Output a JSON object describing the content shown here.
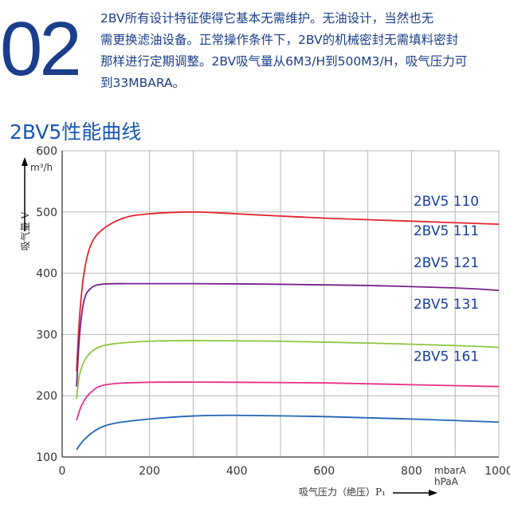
{
  "header": {
    "number": "02",
    "intro_lines": [
      "2BV所有设计特征使得它基本无需维护。无油设计，当然也无",
      "需更换滤油设备。正常操作条件下，2BV的机械密封无需填料密封",
      "那样进行定期调整。2BV吸气量从6M3/H到500M3/H，吸气压力可",
      "到33MBARA。"
    ]
  },
  "chart_data": {
    "type": "line",
    "title": "2BV5性能曲线",
    "xlabel": "吸气压力（绝压）P₁",
    "x_unit": [
      "mbarA",
      "hPaA"
    ],
    "ylabel": "吸气量 V",
    "y_unit": "m³/h",
    "xlim": [
      0,
      1000
    ],
    "ylim": [
      100,
      600
    ],
    "x_ticks": [
      0,
      200,
      400,
      600,
      800,
      1000
    ],
    "y_ticks": [
      100,
      200,
      300,
      400,
      500,
      600
    ],
    "grid": true,
    "series": [
      {
        "name": "2BV5 161",
        "color": "#e3232a",
        "points": [
          [
            33,
            240
          ],
          [
            40,
            330
          ],
          [
            50,
            400
          ],
          [
            65,
            445
          ],
          [
            90,
            470
          ],
          [
            140,
            490
          ],
          [
            200,
            497
          ],
          [
            300,
            500
          ],
          [
            400,
            497
          ],
          [
            600,
            490
          ],
          [
            800,
            485
          ],
          [
            1000,
            480
          ]
        ]
      },
      {
        "name": "2BV5 131",
        "color": "#7a1f8e",
        "points": [
          [
            33,
            215
          ],
          [
            40,
            300
          ],
          [
            50,
            355
          ],
          [
            65,
            375
          ],
          [
            90,
            382
          ],
          [
            150,
            383
          ],
          [
            300,
            383
          ],
          [
            500,
            382
          ],
          [
            700,
            380
          ],
          [
            900,
            376
          ],
          [
            1000,
            372
          ]
        ]
      },
      {
        "name": "2BV5 121",
        "color": "#8cc63f",
        "points": [
          [
            33,
            195
          ],
          [
            40,
            235
          ],
          [
            55,
            262
          ],
          [
            80,
            278
          ],
          [
            120,
            285
          ],
          [
            200,
            289
          ],
          [
            300,
            290
          ],
          [
            500,
            289
          ],
          [
            700,
            286
          ],
          [
            900,
            282
          ],
          [
            1000,
            279
          ]
        ]
      },
      {
        "name": "2BV5 111",
        "color": "#e8308a",
        "points": [
          [
            33,
            160
          ],
          [
            45,
            185
          ],
          [
            65,
            205
          ],
          [
            100,
            218
          ],
          [
            200,
            222
          ],
          [
            400,
            222
          ],
          [
            600,
            221
          ],
          [
            800,
            218
          ],
          [
            1000,
            215
          ]
        ]
      },
      {
        "name": "2BV5 110",
        "color": "#1f66b5",
        "points": [
          [
            33,
            112
          ],
          [
            50,
            128
          ],
          [
            80,
            145
          ],
          [
            120,
            155
          ],
          [
            200,
            162
          ],
          [
            300,
            167
          ],
          [
            400,
            168
          ],
          [
            600,
            166
          ],
          [
            800,
            162
          ],
          [
            1000,
            157
          ]
        ]
      }
    ],
    "label_y": [
      265,
      350,
      418,
      470,
      518
    ]
  }
}
